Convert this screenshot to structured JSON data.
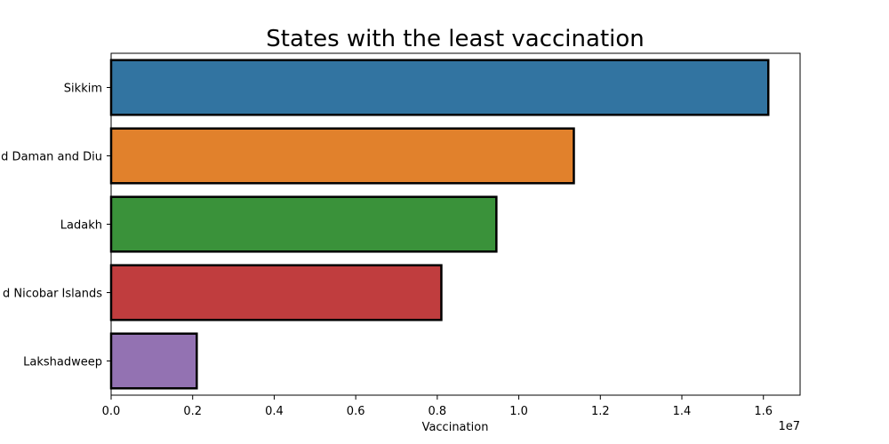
{
  "chart_data": {
    "type": "bar",
    "orientation": "horizontal",
    "title": "States with the least vaccination",
    "xlabel": "Vaccination",
    "ylabel": "",
    "x_scale_label": "1e7",
    "xlim": [
      0,
      16900000
    ],
    "x_ticks": [
      0,
      2000000,
      4000000,
      6000000,
      8000000,
      10000000,
      12000000,
      14000000,
      16000000
    ],
    "x_tick_labels": [
      "0.0",
      "0.2",
      "0.4",
      "0.6",
      "0.8",
      "1.0",
      "1.2",
      "1.4",
      "1.6"
    ],
    "categories": [
      "Sikkim",
      "d Daman and Diu",
      "Ladakh",
      "d Nicobar Islands",
      "Lakshadweep"
    ],
    "values": [
      16120000,
      11350000,
      9450000,
      8100000,
      2100000
    ],
    "colors": [
      "#3274a1",
      "#e1812c",
      "#3a923a",
      "#c03d3e",
      "#9372b2"
    ],
    "grid": false,
    "legend": "none"
  }
}
